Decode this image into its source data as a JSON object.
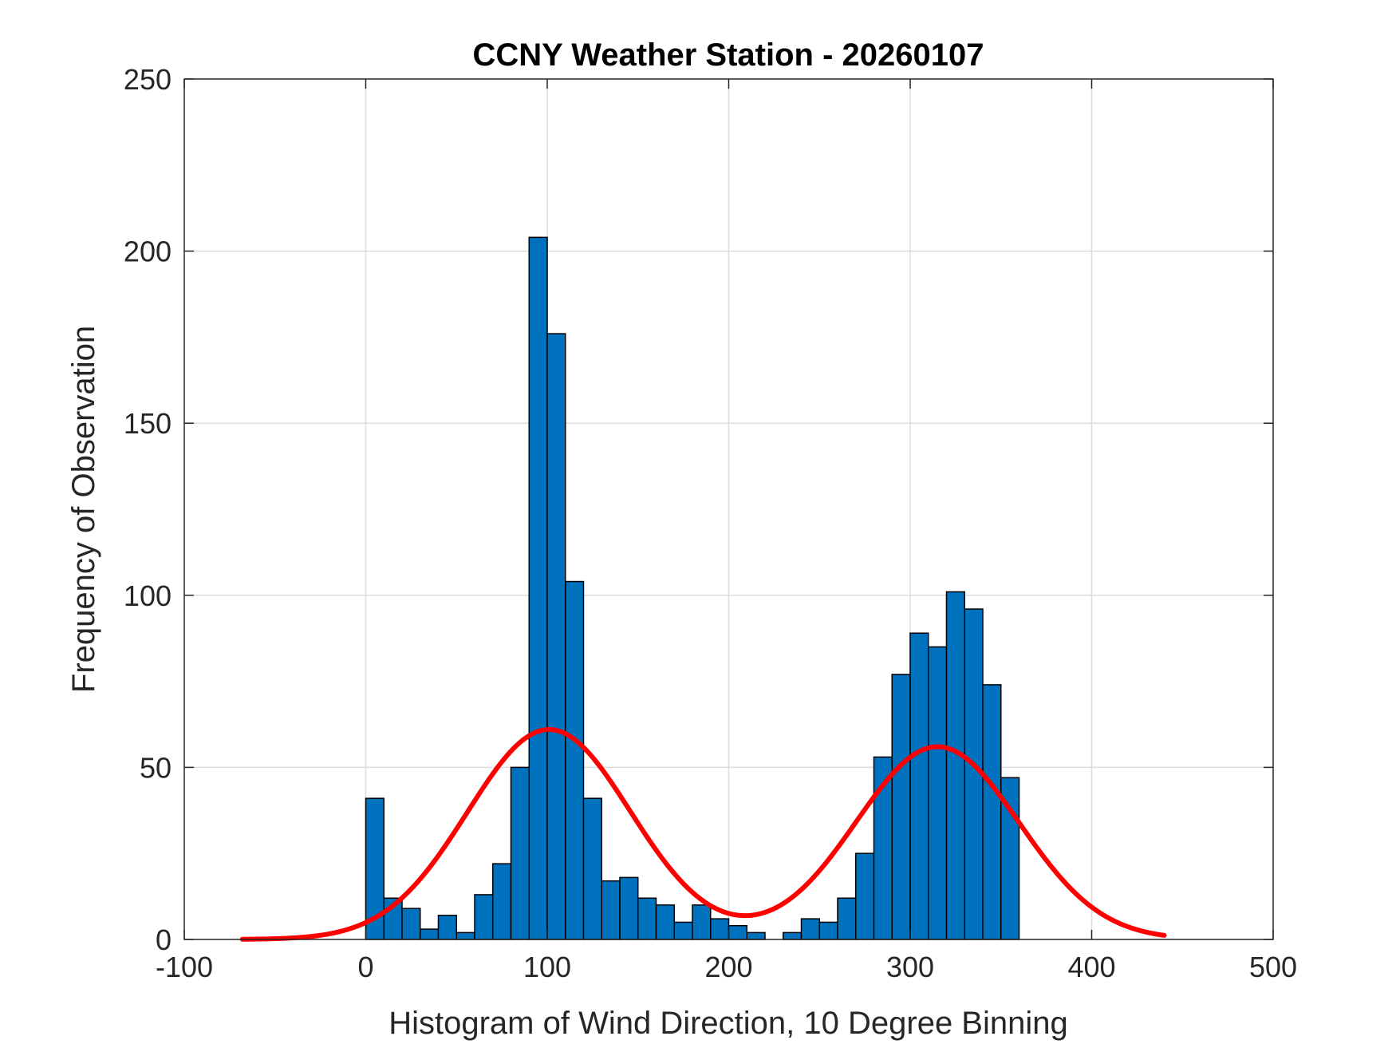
{
  "chart_data": {
    "type": "bar",
    "title": "CCNY Weather Station - 20260107",
    "xlabel": "Histogram of Wind Direction, 10 Degree Binning",
    "ylabel": "Frequency of Observation",
    "xlim": [
      -100,
      500
    ],
    "ylim": [
      0,
      250
    ],
    "grid": true,
    "xticks": [
      -100,
      0,
      100,
      200,
      300,
      400,
      500
    ],
    "yticks": [
      0,
      50,
      100,
      150,
      200,
      250
    ],
    "bin_width": 10,
    "bins": [
      {
        "start": 0,
        "value": 41
      },
      {
        "start": 10,
        "value": 12
      },
      {
        "start": 20,
        "value": 9
      },
      {
        "start": 30,
        "value": 3
      },
      {
        "start": 40,
        "value": 7
      },
      {
        "start": 50,
        "value": 2
      },
      {
        "start": 60,
        "value": 13
      },
      {
        "start": 70,
        "value": 22
      },
      {
        "start": 80,
        "value": 50
      },
      {
        "start": 90,
        "value": 204
      },
      {
        "start": 100,
        "value": 176
      },
      {
        "start": 110,
        "value": 104
      },
      {
        "start": 120,
        "value": 41
      },
      {
        "start": 130,
        "value": 17
      },
      {
        "start": 140,
        "value": 18
      },
      {
        "start": 150,
        "value": 12
      },
      {
        "start": 160,
        "value": 10
      },
      {
        "start": 170,
        "value": 5
      },
      {
        "start": 180,
        "value": 10
      },
      {
        "start": 190,
        "value": 6
      },
      {
        "start": 200,
        "value": 4
      },
      {
        "start": 210,
        "value": 2
      },
      {
        "start": 220,
        "value": 0
      },
      {
        "start": 230,
        "value": 2
      },
      {
        "start": 240,
        "value": 6
      },
      {
        "start": 250,
        "value": 5
      },
      {
        "start": 260,
        "value": 12
      },
      {
        "start": 270,
        "value": 25
      },
      {
        "start": 280,
        "value": 53
      },
      {
        "start": 290,
        "value": 77
      },
      {
        "start": 300,
        "value": 89
      },
      {
        "start": 310,
        "value": 85
      },
      {
        "start": 320,
        "value": 101
      },
      {
        "start": 330,
        "value": 96
      },
      {
        "start": 340,
        "value": 74
      },
      {
        "start": 350,
        "value": 47
      }
    ],
    "fit_curve": {
      "type": "line",
      "name": "two-gaussian fit",
      "x_range": [
        -68,
        440
      ],
      "components": [
        {
          "amplitude": 61,
          "mean": 101,
          "sigma": 45
        },
        {
          "amplitude": 56,
          "mean": 315,
          "sigma": 45
        }
      ]
    },
    "colors": {
      "bar_fill": "#0072BD",
      "bar_edge": "#000000",
      "fit_line": "#FF0000",
      "grid": "#DCDCDC",
      "axis": "#262626"
    }
  }
}
